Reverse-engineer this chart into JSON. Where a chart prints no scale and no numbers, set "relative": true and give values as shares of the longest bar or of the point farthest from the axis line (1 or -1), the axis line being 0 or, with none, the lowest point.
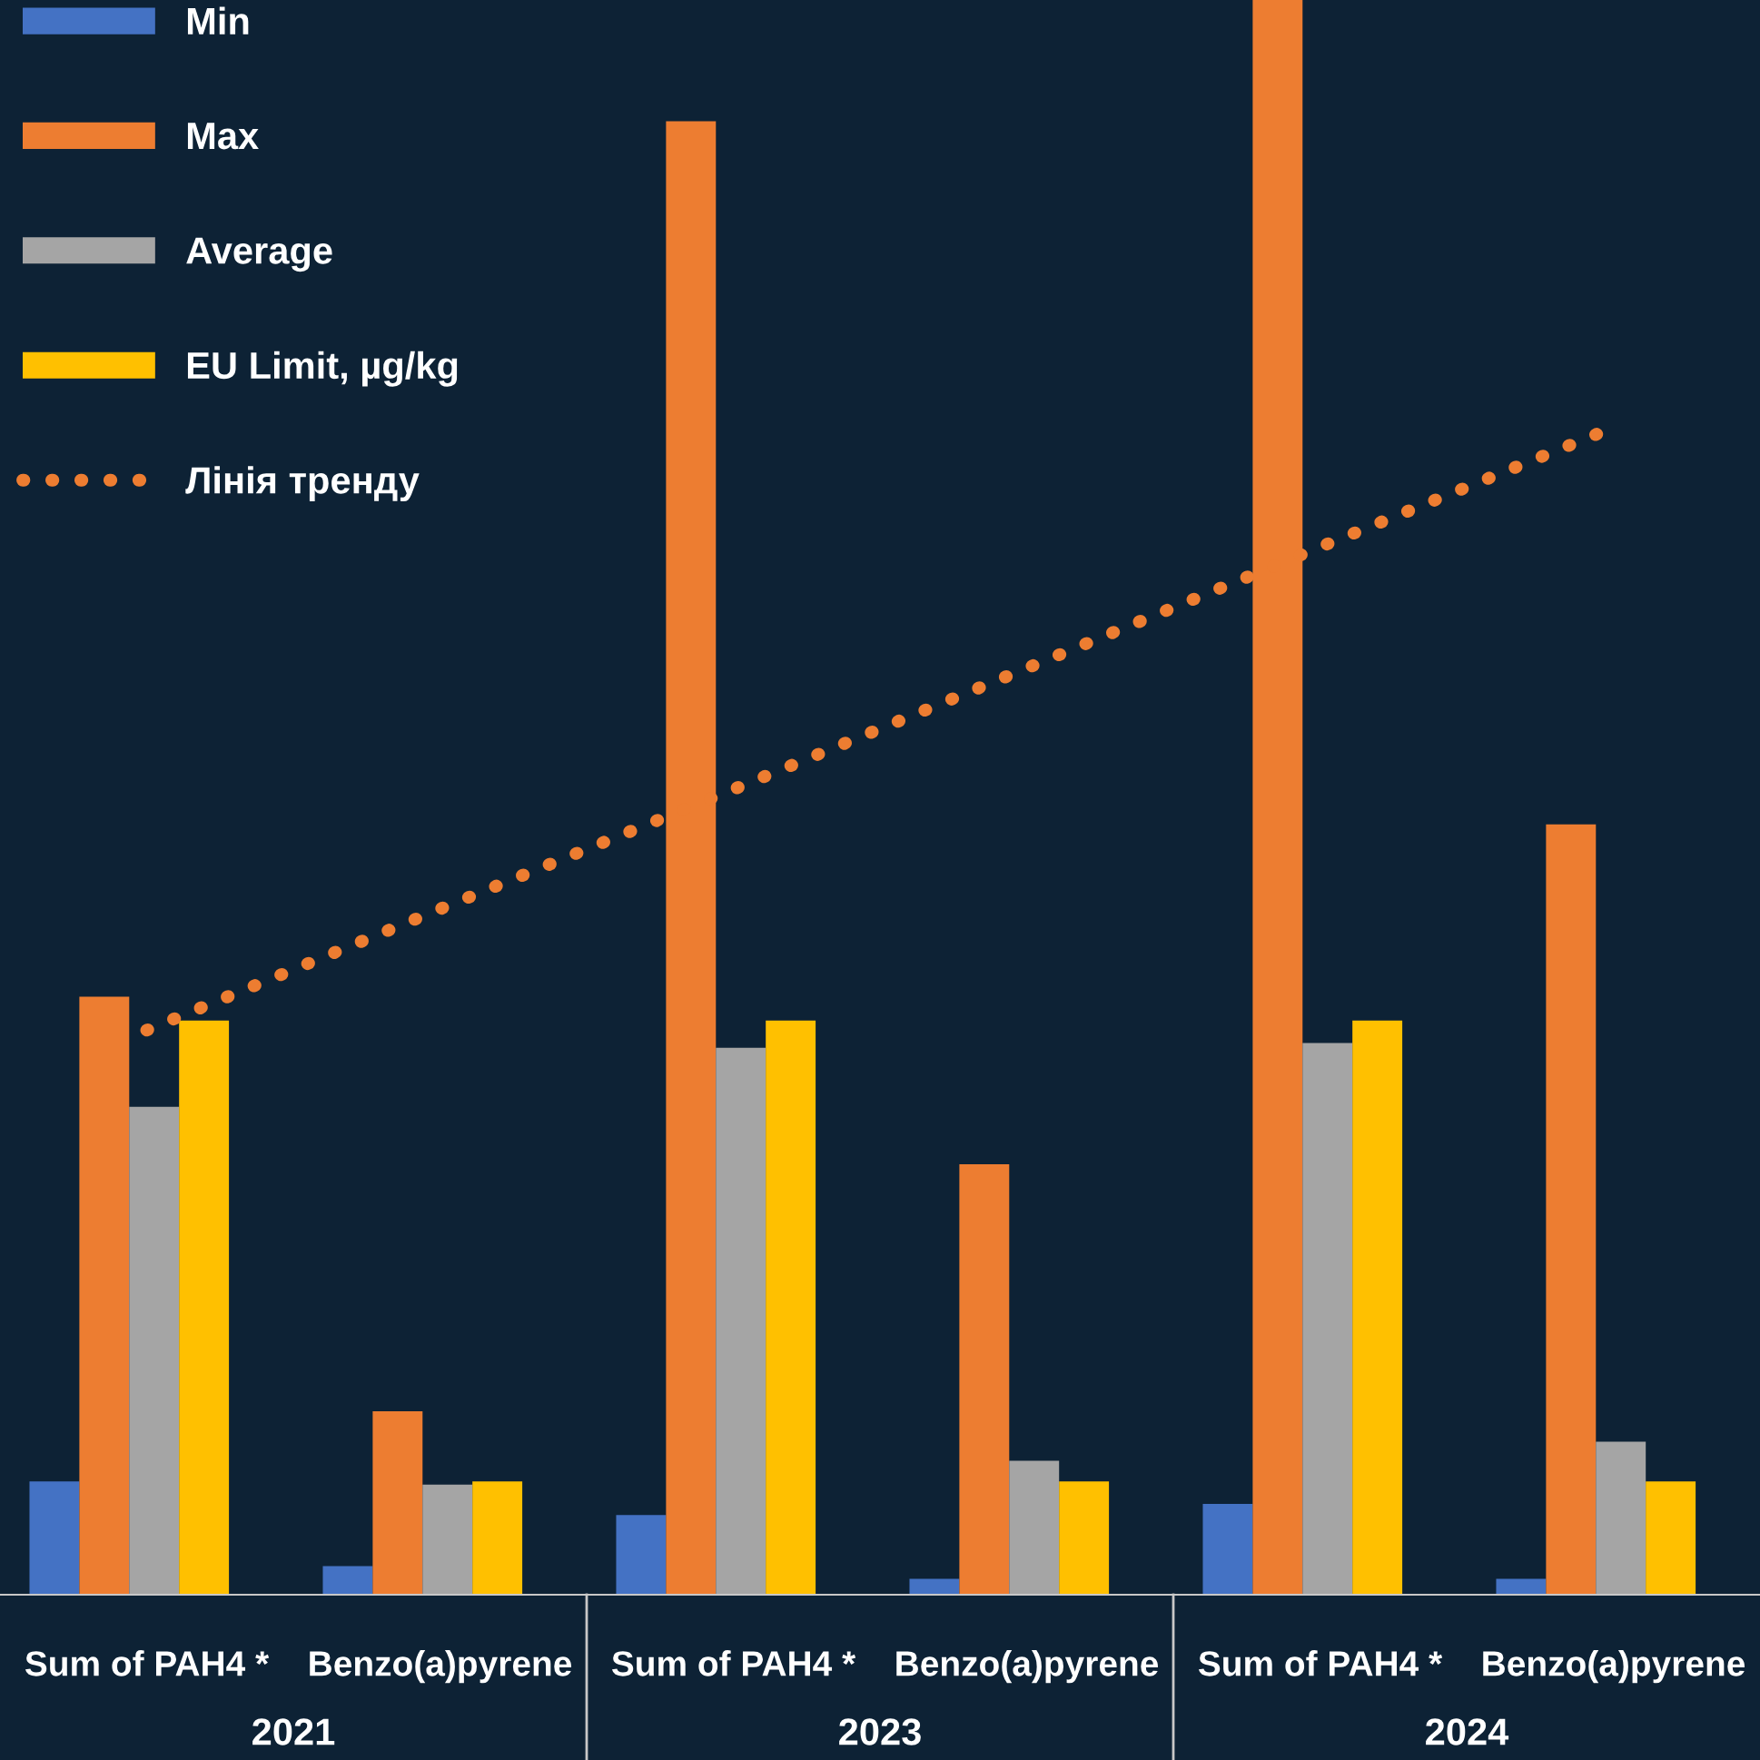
{
  "chart_data": {
    "type": "bar",
    "relative": true,
    "legend": "top left",
    "grid": false,
    "categories": [
      "Sum of PAH4 *",
      "Benzo(a)pyrene",
      "Sum of PAH4 *",
      "Benzo(a)pyrene",
      "Sum of PAH4 *",
      "Benzo(a)pyrene"
    ],
    "annotations": [
      "2021",
      "2023",
      "2024"
    ],
    "series": [
      {
        "name": "Min",
        "color": "#4472c4",
        "values": [
          0.071,
          0.018,
          0.05,
          0.01,
          0.057,
          0.01
        ]
      },
      {
        "name": "Max",
        "color": "#ed7d31",
        "values": [
          0.375,
          0.115,
          0.924,
          0.27,
          1.0,
          0.483
        ]
      },
      {
        "name": "Average",
        "color": "#a5a5a5",
        "values": [
          0.306,
          0.069,
          0.343,
          0.084,
          0.346,
          0.096
        ]
      },
      {
        "name": "EU Limit, µg/kg",
        "color": "#ffc000",
        "values": [
          0.36,
          0.071,
          0.36,
          0.071,
          0.36,
          0.071
        ]
      },
      {
        "name": "Лінія тренду",
        "type": "line",
        "line_style": "dotted",
        "color": "#ed7d31",
        "values": [
          0.354,
          0.43,
          0.505,
          0.581,
          0.657,
          0.732
        ]
      }
    ]
  }
}
